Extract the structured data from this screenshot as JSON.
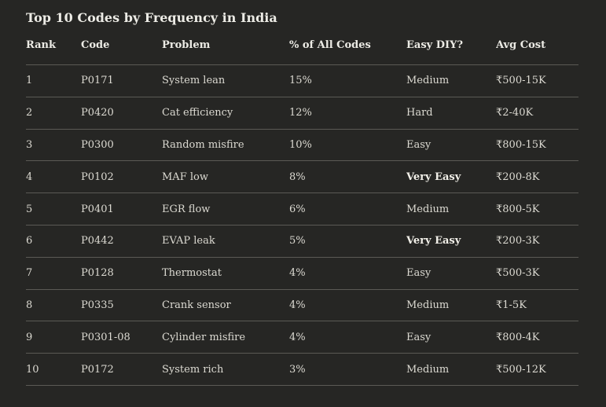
{
  "title": "Top 10 Codes by Frequency in India",
  "columns": [
    "Rank",
    "Code",
    "Problem",
    "% of All Codes",
    "Easy DIY?",
    "Avg Cost"
  ],
  "rows": [
    {
      "rank": "1",
      "code": "P0171",
      "problem": "System lean",
      "pct": "15%",
      "diy": "Medium",
      "cost": "₹500-15K",
      "diy_bold": false
    },
    {
      "rank": "2",
      "code": "P0420",
      "problem": "Cat efficiency",
      "pct": "12%",
      "diy": "Hard",
      "cost": "₹2-40K",
      "diy_bold": false
    },
    {
      "rank": "3",
      "code": "P0300",
      "problem": "Random misfire",
      "pct": "10%",
      "diy": "Easy",
      "cost": "₹800-15K",
      "diy_bold": false
    },
    {
      "rank": "4",
      "code": "P0102",
      "problem": "MAF low",
      "pct": "8%",
      "diy": "Very Easy",
      "cost": "₹200-8K",
      "diy_bold": true
    },
    {
      "rank": "5",
      "code": "P0401",
      "problem": "EGR flow",
      "pct": "6%",
      "diy": "Medium",
      "cost": "₹800-5K",
      "diy_bold": false
    },
    {
      "rank": "6",
      "code": "P0442",
      "problem": "EVAP leak",
      "pct": "5%",
      "diy": "Very Easy",
      "cost": "₹200-3K",
      "diy_bold": true
    },
    {
      "rank": "7",
      "code": "P0128",
      "problem": "Thermostat",
      "pct": "4%",
      "diy": "Easy",
      "cost": "₹500-3K",
      "diy_bold": false
    },
    {
      "rank": "8",
      "code": "P0335",
      "problem": "Crank sensor",
      "pct": "4%",
      "diy": "Medium",
      "cost": "₹1-5K",
      "diy_bold": false
    },
    {
      "rank": "9",
      "code": "P0301-08",
      "problem": "Cylinder misfire",
      "pct": "4%",
      "diy": "Easy",
      "cost": "₹800-4K",
      "diy_bold": false
    },
    {
      "rank": "10",
      "code": "P0172",
      "problem": "System rich",
      "pct": "3%",
      "diy": "Medium",
      "cost": "₹500-12K",
      "diy_bold": false
    }
  ],
  "colors": {
    "background": "#262624",
    "text": "#e8e6df",
    "divider": "#5b5a55"
  }
}
